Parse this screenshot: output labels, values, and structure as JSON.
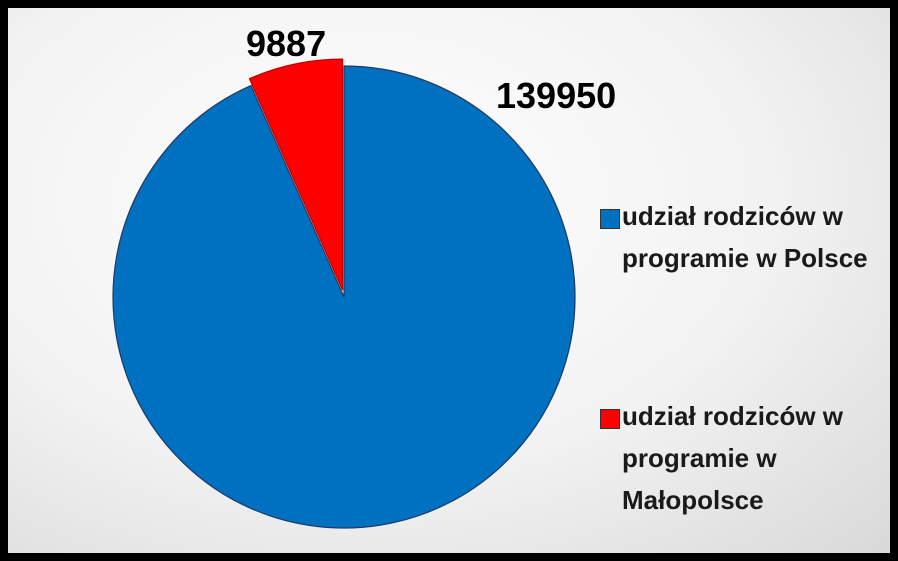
{
  "chart_data": {
    "type": "pie",
    "categories": [
      "udział rodziców w programie w Polsce",
      "udział rodziców w programie w Małopolsce"
    ],
    "values": [
      139950,
      9887
    ],
    "colors": [
      "#0070c0",
      "#ff0000"
    ],
    "legend": "right"
  }
}
